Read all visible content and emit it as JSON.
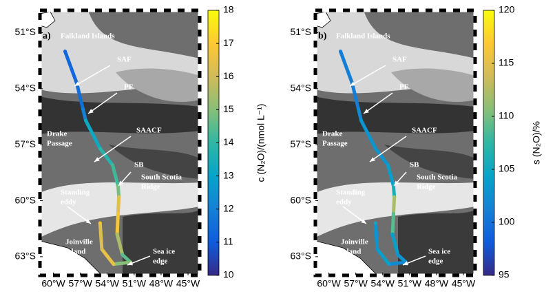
{
  "map": {
    "xlim": [
      -61.5,
      -43.7
    ],
    "ylim": [
      -64,
      -49.8
    ],
    "xticks": [
      {
        "value": -60,
        "label": "60°W"
      },
      {
        "value": -57,
        "label": "57°W"
      },
      {
        "value": -54,
        "label": "54°W"
      },
      {
        "value": -51,
        "label": "51°W"
      },
      {
        "value": -48,
        "label": "48°W"
      },
      {
        "value": -45,
        "label": "45°W"
      }
    ],
    "yticks": [
      {
        "value": -51,
        "label": "51°S"
      },
      {
        "value": -54,
        "label": "54°S"
      },
      {
        "value": -57,
        "label": "57°S"
      },
      {
        "value": -60,
        "label": "60°S"
      },
      {
        "value": -63,
        "label": "63°S"
      }
    ]
  },
  "panels": [
    {
      "label": "a)",
      "colorbar": {
        "label": "c (N₂O)/(nmol L⁻¹)",
        "lim": [
          10,
          18
        ],
        "ticks": [
          10,
          11,
          12,
          13,
          14,
          15,
          16,
          17,
          18
        ]
      },
      "annotations": [
        [
          "Falkland Islands"
        ],
        [
          "SAF"
        ],
        [
          "PF"
        ],
        [
          "Drake",
          "Passage"
        ],
        [
          "SAACF"
        ],
        [
          "SB"
        ],
        [
          "South Scotia",
          "Ridge"
        ],
        [
          "Standing",
          "eddy"
        ],
        [
          "Joinville",
          "Island"
        ],
        [
          "Sea ice",
          "edge"
        ]
      ],
      "track": {
        "lon": [
          -58.7,
          -57.4,
          -56.7,
          -56.4,
          -54.8,
          -53.4,
          -52.8,
          -52.7,
          -52.8,
          -52.9,
          -52.3,
          -51.4,
          -53.3,
          -54.6,
          -54.8
        ],
        "lat": [
          -52.0,
          -53.7,
          -55.1,
          -55.7,
          -57.2,
          -58.1,
          -59.2,
          -59.8,
          -60.7,
          -61.8,
          -62.9,
          -63.3,
          -63.4,
          -62.6,
          -61.2
        ],
        "values": [
          11.3,
          11.5,
          12.0,
          13.2,
          13.8,
          14.2,
          14.8,
          16.3,
          16.8,
          15.5,
          14.5,
          15.0,
          16.5,
          16.2,
          16.8
        ]
      }
    },
    {
      "label": "b)",
      "colorbar": {
        "label": "s (N₂O)/%",
        "lim": [
          95,
          120
        ],
        "ticks": [
          95,
          100,
          105,
          110,
          115,
          120
        ]
      },
      "annotations": [
        [
          "Falkland Islands"
        ],
        [
          "SAF"
        ],
        [
          "PF"
        ],
        [
          "Drake",
          "Passage"
        ],
        [
          "SAACF"
        ],
        [
          "SB"
        ],
        [
          "South Scotia",
          "Ridge"
        ],
        [
          "Standing",
          "eddy"
        ],
        [
          "Joinville",
          "Island"
        ],
        [
          "Sea ice",
          "edge"
        ]
      ],
      "track": {
        "lon": [
          -58.7,
          -57.4,
          -56.7,
          -56.4,
          -54.8,
          -53.4,
          -52.8,
          -52.7,
          -52.8,
          -52.9,
          -52.3,
          -51.4,
          -53.3,
          -54.6,
          -54.8
        ],
        "lat": [
          -52.0,
          -53.7,
          -55.1,
          -55.7,
          -57.2,
          -58.1,
          -59.2,
          -59.8,
          -60.7,
          -61.8,
          -62.9,
          -63.3,
          -63.4,
          -62.6,
          -61.2
        ],
        "values": [
          101,
          101,
          102,
          103,
          103,
          104,
          106,
          112,
          109,
          104,
          103,
          102,
          104,
          103,
          105
        ]
      }
    }
  ]
}
